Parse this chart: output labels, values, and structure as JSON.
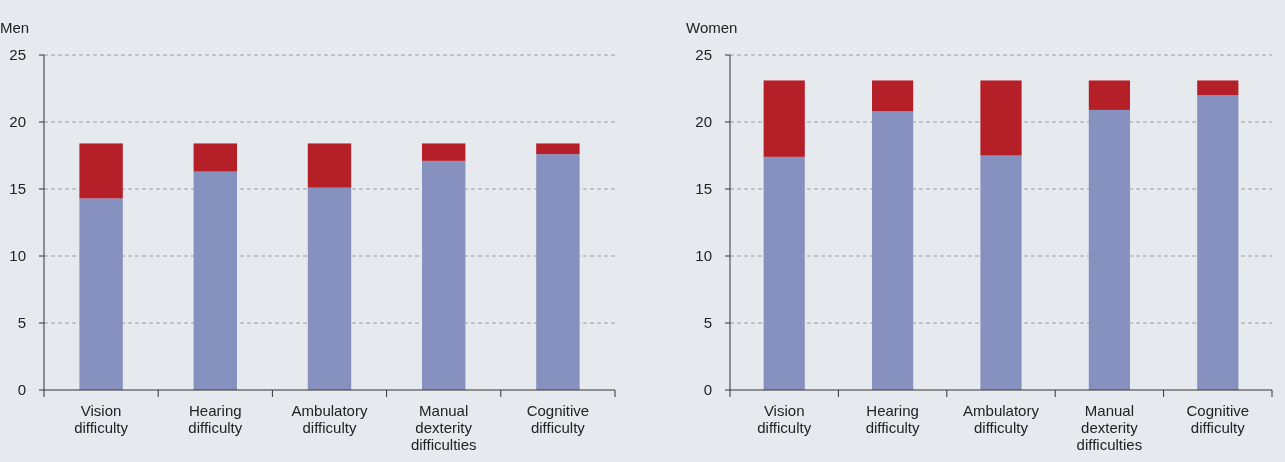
{
  "chart_data": [
    {
      "type": "bar",
      "title": "Men",
      "categories": [
        "Vision difficulty",
        "Hearing difficulty",
        "Ambulatory difficulty",
        "Manual dexterity difficulties",
        "Cognitive difficulty"
      ],
      "stacked": true,
      "series": [
        {
          "color": "#8691bf",
          "values": [
            14.3,
            16.3,
            15.1,
            17.1,
            17.6
          ]
        },
        {
          "color": "#b41f28",
          "values": [
            4.1,
            2.1,
            3.3,
            1.3,
            0.8
          ]
        }
      ],
      "ylim": [
        0,
        25
      ],
      "yticks": [
        0,
        5,
        10,
        15,
        20,
        25
      ],
      "grid": "y"
    },
    {
      "type": "bar",
      "title": "Women",
      "categories": [
        "Vision difficulty",
        "Hearing difficulty",
        "Ambulatory difficulty",
        "Manual dexterity difficulties",
        "Cognitive difficulty"
      ],
      "stacked": true,
      "series": [
        {
          "color": "#8691bf",
          "values": [
            17.4,
            20.8,
            17.5,
            20.9,
            22.0
          ]
        },
        {
          "color": "#b41f28",
          "values": [
            5.7,
            2.3,
            5.6,
            2.2,
            1.1
          ]
        }
      ],
      "ylim": [
        0,
        25
      ],
      "yticks": [
        0,
        5,
        10,
        15,
        20,
        25
      ],
      "grid": "y"
    }
  ]
}
